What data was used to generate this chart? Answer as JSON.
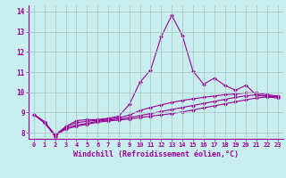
{
  "title": "",
  "xlabel": "Windchill (Refroidissement éolien,°C)",
  "ylabel": "",
  "bg_color": "#c8eef0",
  "line_color": "#990099",
  "grid_color": "#b0c8c8",
  "xlim": [
    -0.5,
    23.5
  ],
  "ylim": [
    7.7,
    14.3
  ],
  "xticks": [
    0,
    1,
    2,
    3,
    4,
    5,
    6,
    7,
    8,
    9,
    10,
    11,
    12,
    13,
    14,
    15,
    16,
    17,
    18,
    19,
    20,
    21,
    22,
    23
  ],
  "yticks": [
    8,
    9,
    10,
    11,
    12,
    13,
    14
  ],
  "series": [
    [
      8.9,
      8.55,
      7.8,
      8.3,
      8.6,
      8.65,
      8.65,
      8.72,
      8.82,
      9.4,
      10.5,
      11.1,
      12.75,
      13.8,
      12.8,
      11.05,
      10.4,
      10.7,
      10.35,
      10.1,
      10.35,
      9.85,
      9.8,
      9.8
    ],
    [
      8.9,
      8.55,
      7.9,
      8.3,
      8.5,
      8.57,
      8.62,
      8.68,
      8.75,
      8.87,
      9.1,
      9.25,
      9.38,
      9.5,
      9.6,
      9.68,
      9.75,
      9.82,
      9.88,
      9.92,
      9.97,
      9.97,
      9.88,
      9.82
    ],
    [
      8.9,
      8.5,
      7.88,
      8.22,
      8.38,
      8.47,
      8.57,
      8.63,
      8.68,
      8.75,
      8.85,
      8.95,
      9.05,
      9.15,
      9.25,
      9.35,
      9.45,
      9.55,
      9.65,
      9.75,
      9.83,
      9.88,
      9.82,
      9.77
    ],
    [
      8.9,
      8.48,
      7.85,
      8.18,
      8.32,
      8.42,
      8.52,
      8.58,
      8.63,
      8.68,
      8.75,
      8.82,
      8.88,
      8.95,
      9.03,
      9.13,
      9.23,
      9.33,
      9.43,
      9.53,
      9.63,
      9.72,
      9.77,
      9.72
    ]
  ]
}
